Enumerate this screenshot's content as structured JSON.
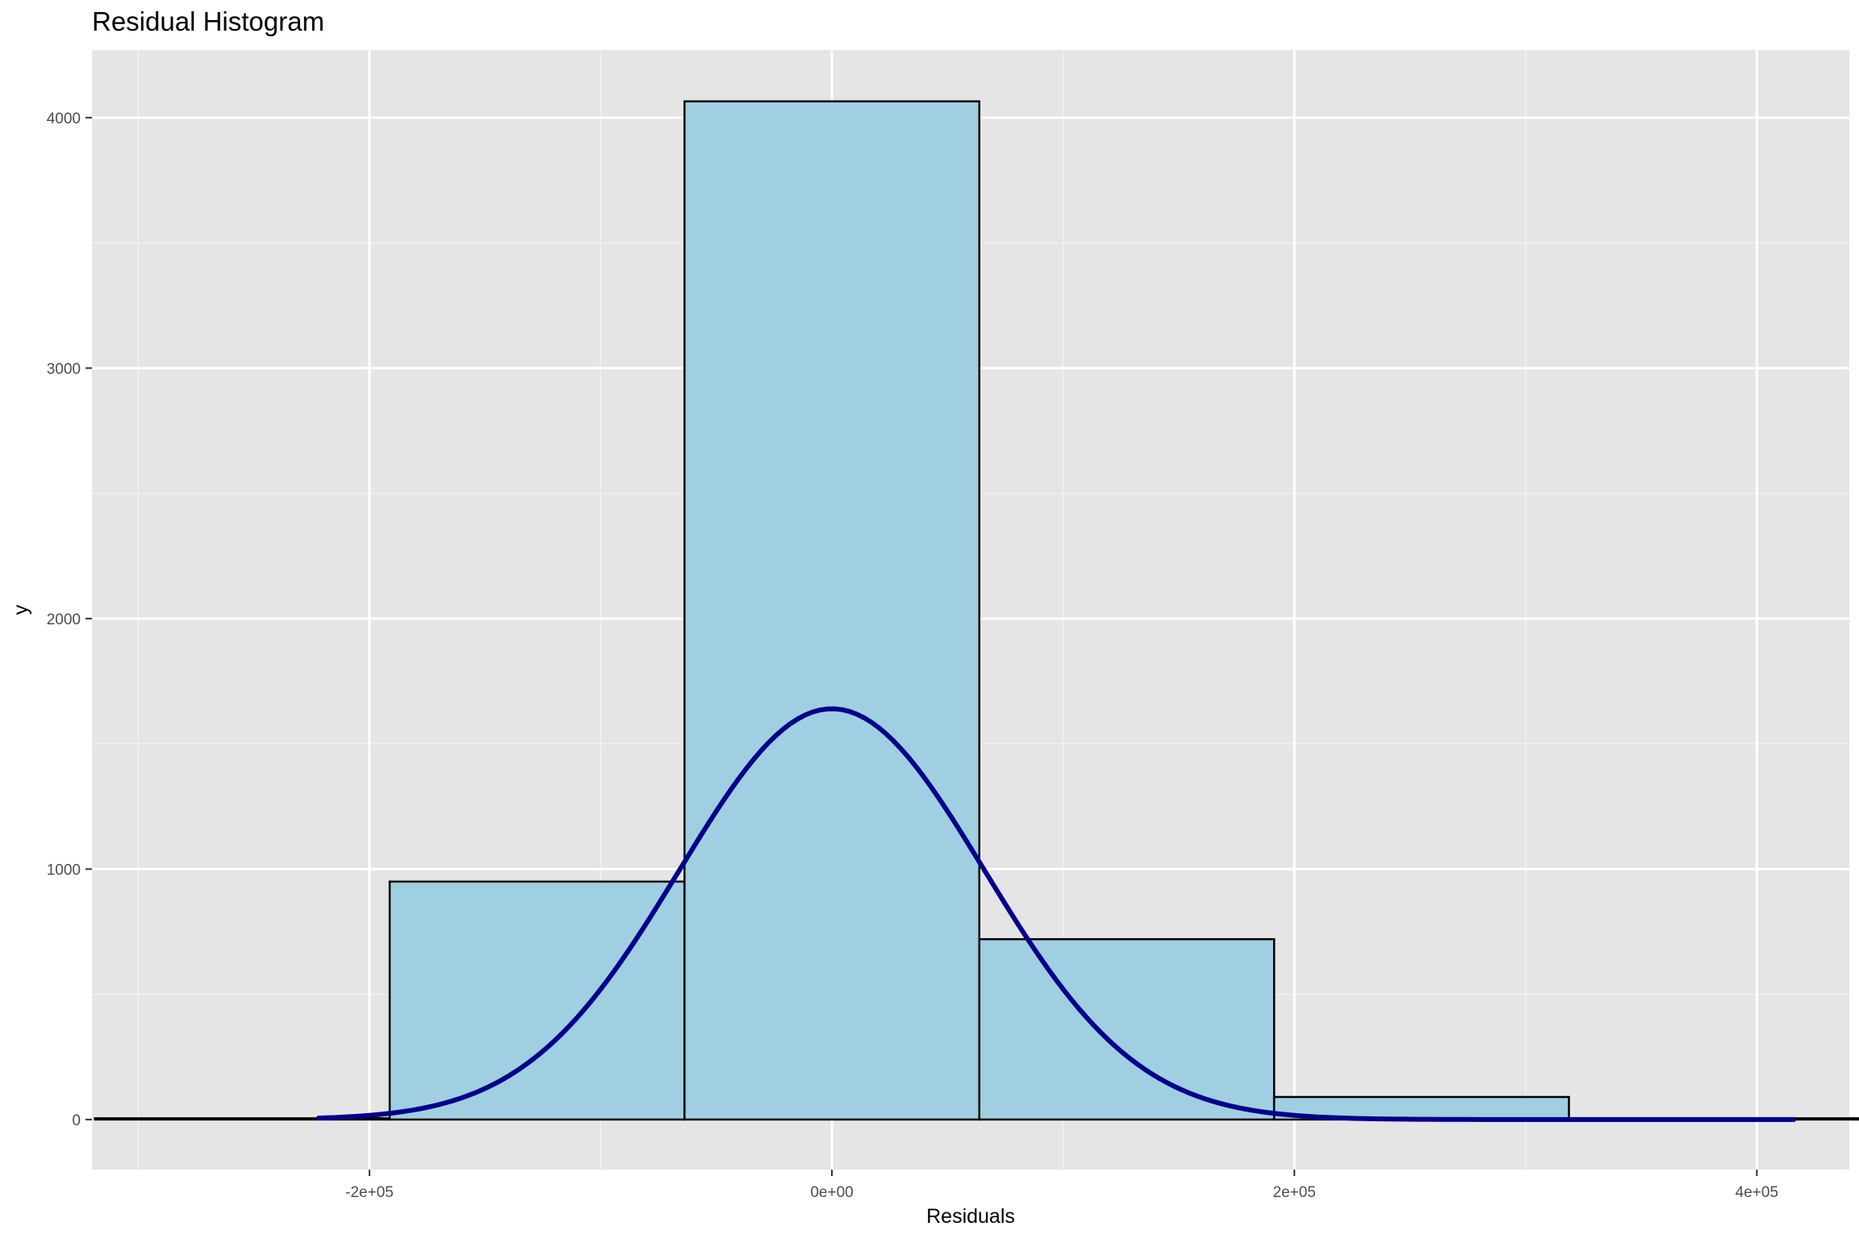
{
  "chart_data": {
    "type": "bar",
    "title": "Residual Histogram",
    "xlabel": "Residuals",
    "ylabel": "y",
    "xlim": [
      -320000,
      440000
    ],
    "ylim": [
      -200,
      4270
    ],
    "x_ticks": [
      -200000,
      0,
      200000,
      400000
    ],
    "x_tick_labels": [
      "-2e+05",
      "0e+00",
      "2e+05",
      "4e+05"
    ],
    "y_ticks": [
      0,
      1000,
      2000,
      3000,
      4000
    ],
    "y_tick_labels": [
      "0",
      "1000",
      "2000",
      "3000",
      "4000"
    ],
    "bin_width": 127500,
    "bins": [
      {
        "x_start": -318750,
        "x_end": -191250,
        "count": 5
      },
      {
        "x_start": -191250,
        "x_end": -63750,
        "count": 950
      },
      {
        "x_start": -63750,
        "x_end": 63750,
        "count": 4065
      },
      {
        "x_start": 63750,
        "x_end": 191250,
        "count": 720
      },
      {
        "x_start": 191250,
        "x_end": 318750,
        "count": 90
      },
      {
        "x_start": 318750,
        "x_end": 446250,
        "count": 5
      }
    ],
    "normal_curve": {
      "mean": 0,
      "sd": 66000,
      "peak": 1640,
      "x_range": [
        -222000,
        416000
      ]
    },
    "grid": true,
    "colors": {
      "panel_background": "#E5E5E5",
      "grid_major": "#FFFFFF",
      "grid_minor": "#F2F2F2",
      "bar_fill": "#A0CFE1",
      "bar_outline": "#000000",
      "curve": "#00008B"
    }
  }
}
